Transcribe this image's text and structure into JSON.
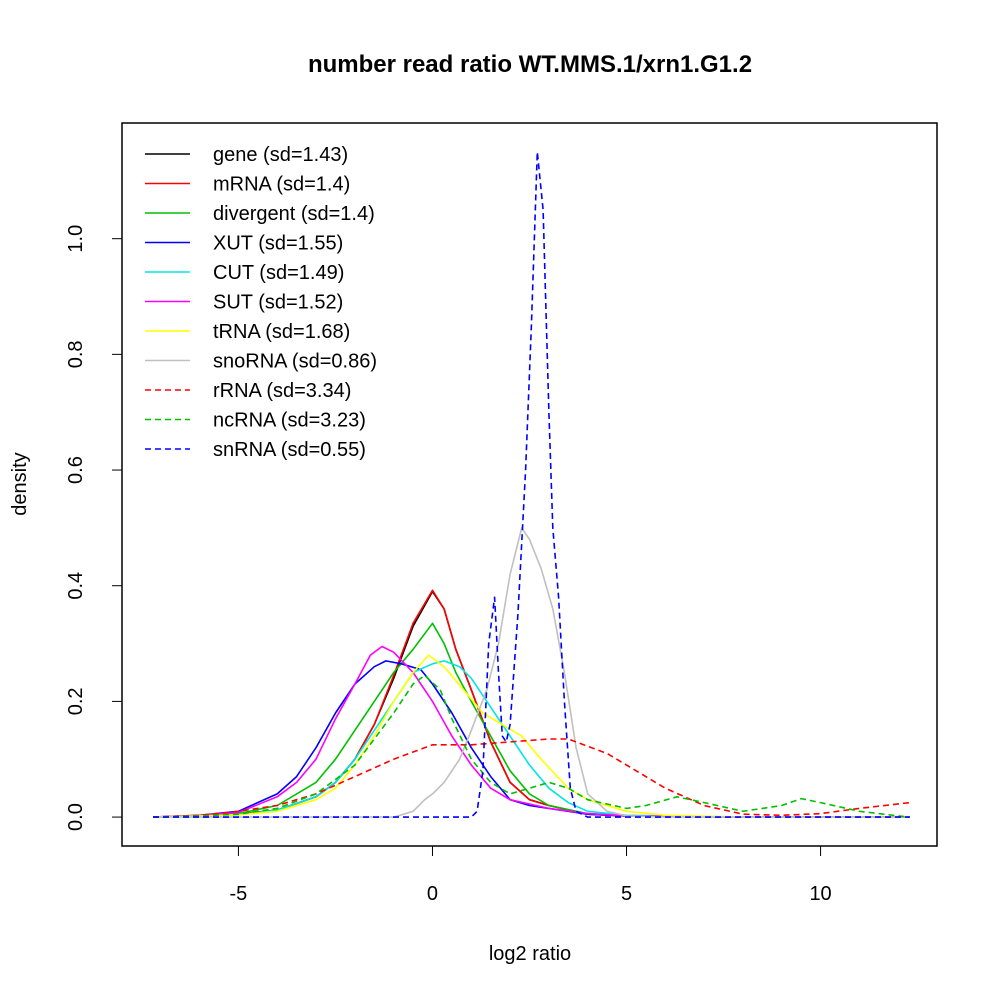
{
  "chart_data": {
    "type": "line",
    "title": "number read ratio WT.MMS.1/xrn1.G1.2",
    "xlabel": "log2 ratio",
    "ylabel": "density",
    "xlim": [
      -8,
      13
    ],
    "ylim": [
      -0.05,
      1.2
    ],
    "x_ticks": [
      -5,
      0,
      5,
      10
    ],
    "x_tick_labels": [
      "-5",
      "0",
      "5",
      "10"
    ],
    "y_ticks": [
      0.0,
      0.2,
      0.4,
      0.6,
      0.8,
      1.0
    ],
    "y_tick_labels": [
      "0.0",
      "0.2",
      "0.4",
      "0.6",
      "0.8",
      "1.0"
    ],
    "grid": false,
    "legend_position": "top-left",
    "series": [
      {
        "name": "gene",
        "legend_label": "gene (sd=1.43)",
        "color": "#000000",
        "dashed": false,
        "points": [
          [
            -7.2,
            0
          ],
          [
            -6,
            0.002
          ],
          [
            -5,
            0.005
          ],
          [
            -4,
            0.012
          ],
          [
            -3,
            0.035
          ],
          [
            -2.5,
            0.06
          ],
          [
            -2,
            0.1
          ],
          [
            -1.5,
            0.16
          ],
          [
            -1,
            0.24
          ],
          [
            -0.5,
            0.33
          ],
          [
            0,
            0.39
          ],
          [
            0.3,
            0.36
          ],
          [
            0.6,
            0.29
          ],
          [
            1,
            0.22
          ],
          [
            1.5,
            0.13
          ],
          [
            2,
            0.06
          ],
          [
            2.5,
            0.03
          ],
          [
            3,
            0.02
          ],
          [
            4,
            0.005
          ],
          [
            5,
            0.002
          ],
          [
            8,
            0
          ],
          [
            12.3,
            0
          ]
        ]
      },
      {
        "name": "mRNA",
        "legend_label": "mRNA (sd=1.4)",
        "color": "#ff0000",
        "dashed": false,
        "points": [
          [
            -7.2,
            0
          ],
          [
            -6,
            0.002
          ],
          [
            -5,
            0.005
          ],
          [
            -4,
            0.012
          ],
          [
            -3,
            0.035
          ],
          [
            -2.5,
            0.06
          ],
          [
            -2,
            0.1
          ],
          [
            -1.5,
            0.16
          ],
          [
            -1,
            0.245
          ],
          [
            -0.5,
            0.335
          ],
          [
            0,
            0.392
          ],
          [
            0.3,
            0.36
          ],
          [
            0.6,
            0.29
          ],
          [
            1,
            0.22
          ],
          [
            1.5,
            0.13
          ],
          [
            2,
            0.06
          ],
          [
            2.5,
            0.03
          ],
          [
            3,
            0.02
          ],
          [
            4,
            0.005
          ],
          [
            5,
            0.002
          ],
          [
            8,
            0
          ],
          [
            12.3,
            0
          ]
        ]
      },
      {
        "name": "divergent",
        "legend_label": "divergent (sd=1.4)",
        "color": "#00c000",
        "dashed": false,
        "points": [
          [
            -7.2,
            0
          ],
          [
            -6,
            0.002
          ],
          [
            -5,
            0.006
          ],
          [
            -4,
            0.02
          ],
          [
            -3,
            0.06
          ],
          [
            -2.5,
            0.1
          ],
          [
            -2,
            0.15
          ],
          [
            -1.5,
            0.2
          ],
          [
            -1,
            0.25
          ],
          [
            -0.5,
            0.29
          ],
          [
            0,
            0.335
          ],
          [
            0.3,
            0.3
          ],
          [
            0.6,
            0.25
          ],
          [
            1,
            0.2
          ],
          [
            1.5,
            0.14
          ],
          [
            2,
            0.08
          ],
          [
            2.5,
            0.04
          ],
          [
            3,
            0.02
          ],
          [
            4,
            0.006
          ],
          [
            5,
            0.002
          ],
          [
            8,
            0
          ],
          [
            12.3,
            0
          ]
        ]
      },
      {
        "name": "XUT",
        "legend_label": "XUT (sd=1.55)",
        "color": "#0000ff",
        "dashed": false,
        "points": [
          [
            -7.2,
            0
          ],
          [
            -6,
            0.003
          ],
          [
            -5,
            0.01
          ],
          [
            -4,
            0.04
          ],
          [
            -3.5,
            0.07
          ],
          [
            -3,
            0.12
          ],
          [
            -2.5,
            0.18
          ],
          [
            -2,
            0.23
          ],
          [
            -1.5,
            0.26
          ],
          [
            -1.2,
            0.27
          ],
          [
            -0.8,
            0.265
          ],
          [
            -0.3,
            0.255
          ],
          [
            0,
            0.23
          ],
          [
            0.5,
            0.18
          ],
          [
            1,
            0.12
          ],
          [
            1.5,
            0.07
          ],
          [
            2,
            0.03
          ],
          [
            2.5,
            0.02
          ],
          [
            3,
            0.015
          ],
          [
            4,
            0.005
          ],
          [
            5,
            0.002
          ],
          [
            8,
            0
          ],
          [
            12.3,
            0
          ]
        ]
      },
      {
        "name": "CUT",
        "legend_label": "CUT (sd=1.49)",
        "color": "#00e5e5",
        "dashed": false,
        "points": [
          [
            -7.2,
            0
          ],
          [
            -6,
            0.002
          ],
          [
            -5,
            0.004
          ],
          [
            -4,
            0.012
          ],
          [
            -3,
            0.035
          ],
          [
            -2.5,
            0.06
          ],
          [
            -2,
            0.1
          ],
          [
            -1.5,
            0.15
          ],
          [
            -1,
            0.2
          ],
          [
            -0.5,
            0.25
          ],
          [
            0,
            0.265
          ],
          [
            0.3,
            0.27
          ],
          [
            0.7,
            0.26
          ],
          [
            1,
            0.24
          ],
          [
            1.5,
            0.19
          ],
          [
            2,
            0.14
          ],
          [
            2.5,
            0.09
          ],
          [
            3,
            0.05
          ],
          [
            3.5,
            0.025
          ],
          [
            4,
            0.01
          ],
          [
            5,
            0.003
          ],
          [
            8,
            0
          ],
          [
            12.3,
            0
          ]
        ]
      },
      {
        "name": "SUT",
        "legend_label": "SUT (sd=1.52)",
        "color": "#ff00ff",
        "dashed": false,
        "points": [
          [
            -7.2,
            0
          ],
          [
            -6,
            0.003
          ],
          [
            -5,
            0.008
          ],
          [
            -4,
            0.035
          ],
          [
            -3.5,
            0.06
          ],
          [
            -3,
            0.1
          ],
          [
            -2.5,
            0.17
          ],
          [
            -2,
            0.23
          ],
          [
            -1.6,
            0.28
          ],
          [
            -1.3,
            0.295
          ],
          [
            -1,
            0.285
          ],
          [
            -0.5,
            0.25
          ],
          [
            0,
            0.2
          ],
          [
            0.5,
            0.14
          ],
          [
            1,
            0.09
          ],
          [
            1.5,
            0.05
          ],
          [
            2,
            0.03
          ],
          [
            3,
            0.015
          ],
          [
            4,
            0.006
          ],
          [
            5,
            0.002
          ],
          [
            8,
            0
          ],
          [
            12.3,
            0
          ]
        ]
      },
      {
        "name": "tRNA",
        "legend_label": "tRNA (sd=1.68)",
        "color": "#ffff00",
        "dashed": false,
        "points": [
          [
            -7.2,
            0
          ],
          [
            -6,
            0.002
          ],
          [
            -5,
            0.004
          ],
          [
            -4,
            0.01
          ],
          [
            -3,
            0.03
          ],
          [
            -2.5,
            0.05
          ],
          [
            -2,
            0.09
          ],
          [
            -1.5,
            0.14
          ],
          [
            -1,
            0.2
          ],
          [
            -0.5,
            0.25
          ],
          [
            -0.1,
            0.28
          ],
          [
            0.3,
            0.26
          ],
          [
            0.8,
            0.22
          ],
          [
            1.3,
            0.18
          ],
          [
            1.8,
            0.16
          ],
          [
            2.3,
            0.14
          ],
          [
            2.8,
            0.1
          ],
          [
            3.5,
            0.05
          ],
          [
            4,
            0.03
          ],
          [
            5,
            0.01
          ],
          [
            6,
            0.003
          ],
          [
            8,
            0
          ],
          [
            12.3,
            0
          ]
        ]
      },
      {
        "name": "snoRNA",
        "legend_label": "snoRNA (sd=0.86)",
        "color": "#c0c0c0",
        "dashed": false,
        "points": [
          [
            -7.2,
            0
          ],
          [
            -1,
            0
          ],
          [
            -0.5,
            0.01
          ],
          [
            -0.2,
            0.03
          ],
          [
            0,
            0.04
          ],
          [
            0.3,
            0.06
          ],
          [
            0.7,
            0.1
          ],
          [
            1,
            0.15
          ],
          [
            1.4,
            0.22
          ],
          [
            1.7,
            0.3
          ],
          [
            2,
            0.42
          ],
          [
            2.3,
            0.5
          ],
          [
            2.5,
            0.48
          ],
          [
            2.8,
            0.43
          ],
          [
            3.1,
            0.36
          ],
          [
            3.4,
            0.25
          ],
          [
            3.7,
            0.12
          ],
          [
            4,
            0.04
          ],
          [
            4.5,
            0.01
          ],
          [
            5,
            0.002
          ],
          [
            6,
            0
          ],
          [
            12.3,
            0
          ]
        ]
      },
      {
        "name": "rRNA",
        "legend_label": "rRNA (sd=3.34)",
        "color": "#ff0000",
        "dashed": true,
        "points": [
          [
            -7.2,
            0
          ],
          [
            -6,
            0.003
          ],
          [
            -5,
            0.01
          ],
          [
            -4,
            0.02
          ],
          [
            -3,
            0.04
          ],
          [
            -2,
            0.07
          ],
          [
            -1,
            0.1
          ],
          [
            0,
            0.125
          ],
          [
            1,
            0.125
          ],
          [
            2,
            0.13
          ],
          [
            3,
            0.135
          ],
          [
            3.5,
            0.135
          ],
          [
            4.5,
            0.11
          ],
          [
            5,
            0.09
          ],
          [
            6,
            0.05
          ],
          [
            7,
            0.02
          ],
          [
            8,
            0.005
          ],
          [
            9,
            0.003
          ],
          [
            10,
            0.006
          ],
          [
            11,
            0.015
          ],
          [
            12.3,
            0.025
          ]
        ]
      },
      {
        "name": "ncRNA",
        "legend_label": "ncRNA (sd=3.23)",
        "color": "#00c000",
        "dashed": true,
        "points": [
          [
            -7.2,
            0
          ],
          [
            -6,
            0.002
          ],
          [
            -5,
            0.005
          ],
          [
            -4,
            0.015
          ],
          [
            -3,
            0.04
          ],
          [
            -2,
            0.09
          ],
          [
            -1,
            0.18
          ],
          [
            -0.5,
            0.23
          ],
          [
            -0.2,
            0.245
          ],
          [
            0.2,
            0.22
          ],
          [
            0.5,
            0.17
          ],
          [
            1,
            0.1
          ],
          [
            1.5,
            0.06
          ],
          [
            2,
            0.04
          ],
          [
            2.5,
            0.05
          ],
          [
            3,
            0.06
          ],
          [
            3.5,
            0.05
          ],
          [
            4,
            0.03
          ],
          [
            5,
            0.015
          ],
          [
            5.5,
            0.02
          ],
          [
            6.3,
            0.035
          ],
          [
            7,
            0.025
          ],
          [
            8,
            0.01
          ],
          [
            9,
            0.02
          ],
          [
            9.5,
            0.032
          ],
          [
            10,
            0.025
          ],
          [
            11,
            0.01
          ],
          [
            12,
            0.002
          ],
          [
            12.3,
            0
          ]
        ]
      },
      {
        "name": "snRNA",
        "legend_label": "snRNA (sd=0.55)",
        "color": "#0000ff",
        "dashed": true,
        "points": [
          [
            -7.2,
            0
          ],
          [
            1,
            0
          ],
          [
            1.15,
            0.01
          ],
          [
            1.3,
            0.08
          ],
          [
            1.45,
            0.3
          ],
          [
            1.6,
            0.38
          ],
          [
            1.7,
            0.25
          ],
          [
            1.8,
            0.14
          ],
          [
            1.9,
            0.13
          ],
          [
            2,
            0.16
          ],
          [
            2.2,
            0.35
          ],
          [
            2.4,
            0.6
          ],
          [
            2.55,
            0.85
          ],
          [
            2.7,
            1.15
          ],
          [
            2.85,
            1.05
          ],
          [
            3,
            0.7
          ],
          [
            3.1,
            0.5
          ],
          [
            3.25,
            0.38
          ],
          [
            3.4,
            0.2
          ],
          [
            3.55,
            0.05
          ],
          [
            3.7,
            0.01
          ],
          [
            4,
            0
          ],
          [
            12.3,
            0
          ]
        ]
      }
    ]
  }
}
